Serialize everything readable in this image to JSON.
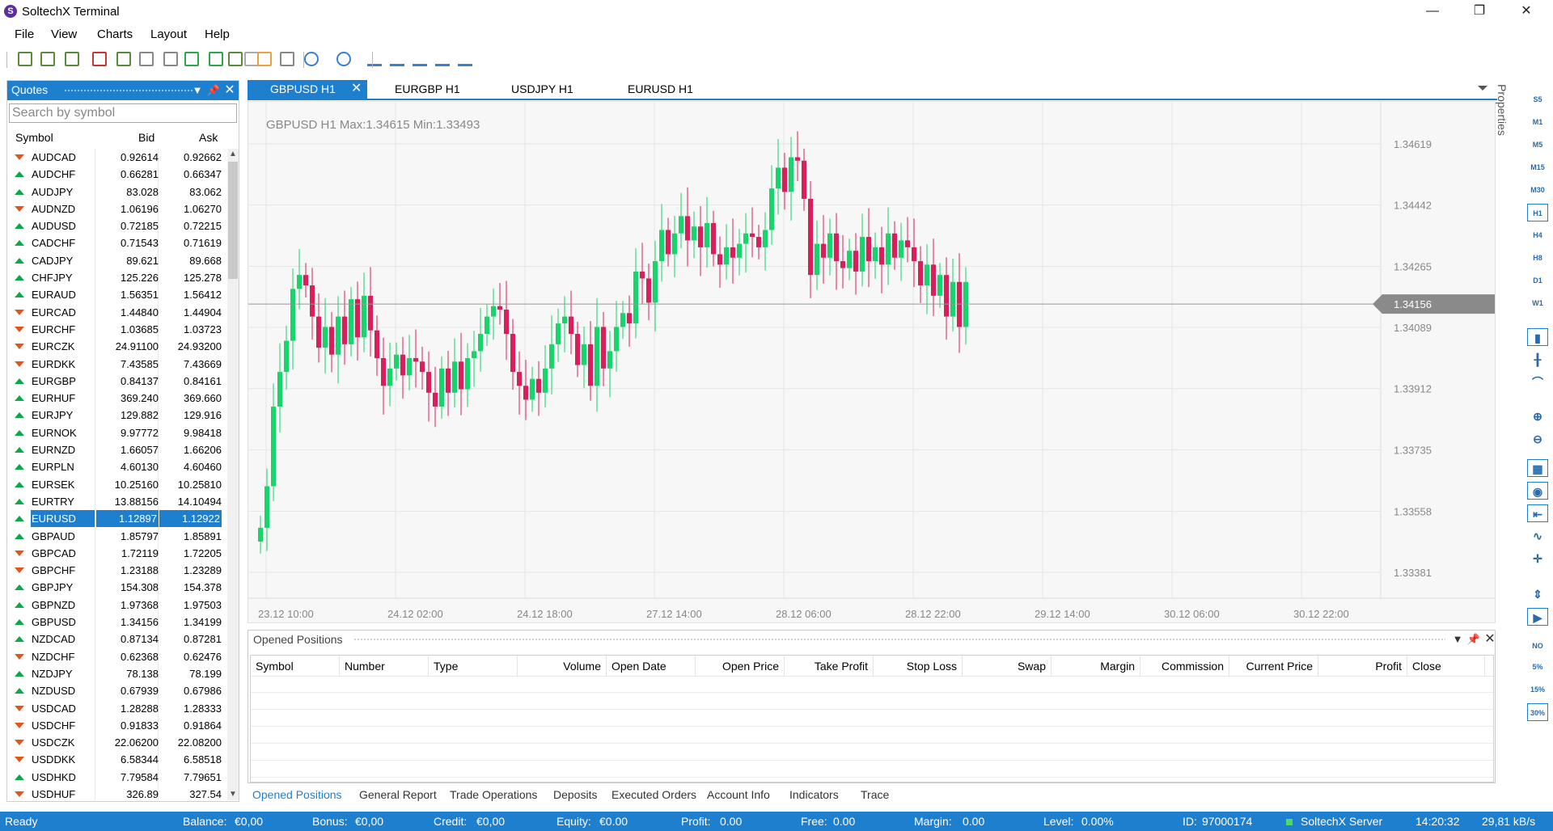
{
  "window": {
    "title": "SoltechX Terminal",
    "logo": "S",
    "minimize": "—",
    "maximize": "❐",
    "close": "✕"
  },
  "menu": [
    "File",
    "View",
    "Charts",
    "Layout",
    "Help"
  ],
  "toolbar_icons": [
    "new-chart-icon",
    "add-chart-icon",
    "crosshair-icon",
    "remove-icon",
    "open-icon",
    "save-icon",
    "print-icon",
    "compare-icon",
    "upload-icon",
    "template-icon",
    "user-icon",
    "lock-icon",
    "calculator-icon",
    "indicator-icon",
    "wave-icon",
    "vertical-line-icon",
    "horizontal-line-icon",
    "trendline-icon",
    "angle-icon",
    "fibonacci-icon"
  ],
  "quotes": {
    "title": "Quotes",
    "search_placeholder": "Search by symbol",
    "col_symbol": "Symbol",
    "col_bid": "Bid",
    "col_ask": "Ask",
    "rows": [
      {
        "symbol": "AUDCAD",
        "bid": "0.92614",
        "ask": "0.92662",
        "dir": "down"
      },
      {
        "symbol": "AUDCHF",
        "bid": "0.66281",
        "ask": "0.66347",
        "dir": "up"
      },
      {
        "symbol": "AUDJPY",
        "bid": "83.028",
        "ask": "83.062",
        "dir": "up"
      },
      {
        "symbol": "AUDNZD",
        "bid": "1.06196",
        "ask": "1.06270",
        "dir": "down"
      },
      {
        "symbol": "AUDUSD",
        "bid": "0.72185",
        "ask": "0.72215",
        "dir": "up"
      },
      {
        "symbol": "CADCHF",
        "bid": "0.71543",
        "ask": "0.71619",
        "dir": "up"
      },
      {
        "symbol": "CADJPY",
        "bid": "89.621",
        "ask": "89.668",
        "dir": "up"
      },
      {
        "symbol": "CHFJPY",
        "bid": "125.226",
        "ask": "125.278",
        "dir": "up"
      },
      {
        "symbol": "EURAUD",
        "bid": "1.56351",
        "ask": "1.56412",
        "dir": "up"
      },
      {
        "symbol": "EURCAD",
        "bid": "1.44840",
        "ask": "1.44904",
        "dir": "down"
      },
      {
        "symbol": "EURCHF",
        "bid": "1.03685",
        "ask": "1.03723",
        "dir": "down"
      },
      {
        "symbol": "EURCZK",
        "bid": "24.91100",
        "ask": "24.93200",
        "dir": "down"
      },
      {
        "symbol": "EURDKK",
        "bid": "7.43585",
        "ask": "7.43669",
        "dir": "down"
      },
      {
        "symbol": "EURGBP",
        "bid": "0.84137",
        "ask": "0.84161",
        "dir": "up"
      },
      {
        "symbol": "EURHUF",
        "bid": "369.240",
        "ask": "369.660",
        "dir": "up"
      },
      {
        "symbol": "EURJPY",
        "bid": "129.882",
        "ask": "129.916",
        "dir": "up"
      },
      {
        "symbol": "EURNOK",
        "bid": "9.97772",
        "ask": "9.98418",
        "dir": "up"
      },
      {
        "symbol": "EURNZD",
        "bid": "1.66057",
        "ask": "1.66206",
        "dir": "up"
      },
      {
        "symbol": "EURPLN",
        "bid": "4.60130",
        "ask": "4.60460",
        "dir": "up"
      },
      {
        "symbol": "EURSEK",
        "bid": "10.25160",
        "ask": "10.25810",
        "dir": "up"
      },
      {
        "symbol": "EURTRY",
        "bid": "13.88156",
        "ask": "14.10494",
        "dir": "up"
      },
      {
        "symbol": "EURUSD",
        "bid": "1.12897",
        "ask": "1.12922",
        "dir": "up",
        "selected": true
      },
      {
        "symbol": "GBPAUD",
        "bid": "1.85797",
        "ask": "1.85891",
        "dir": "up"
      },
      {
        "symbol": "GBPCAD",
        "bid": "1.72119",
        "ask": "1.72205",
        "dir": "down"
      },
      {
        "symbol": "GBPCHF",
        "bid": "1.23188",
        "ask": "1.23289",
        "dir": "down"
      },
      {
        "symbol": "GBPJPY",
        "bid": "154.308",
        "ask": "154.378",
        "dir": "up"
      },
      {
        "symbol": "GBPNZD",
        "bid": "1.97368",
        "ask": "1.97503",
        "dir": "up"
      },
      {
        "symbol": "GBPUSD",
        "bid": "1.34156",
        "ask": "1.34199",
        "dir": "up"
      },
      {
        "symbol": "NZDCAD",
        "bid": "0.87134",
        "ask": "0.87281",
        "dir": "up"
      },
      {
        "symbol": "NZDCHF",
        "bid": "0.62368",
        "ask": "0.62476",
        "dir": "down"
      },
      {
        "symbol": "NZDJPY",
        "bid": "78.138",
        "ask": "78.199",
        "dir": "up"
      },
      {
        "symbol": "NZDUSD",
        "bid": "0.67939",
        "ask": "0.67986",
        "dir": "up"
      },
      {
        "symbol": "USDCAD",
        "bid": "1.28288",
        "ask": "1.28333",
        "dir": "down"
      },
      {
        "symbol": "USDCHF",
        "bid": "0.91833",
        "ask": "0.91864",
        "dir": "down"
      },
      {
        "symbol": "USDCZK",
        "bid": "22.06200",
        "ask": "22.08200",
        "dir": "down"
      },
      {
        "symbol": "USDDKK",
        "bid": "6.58344",
        "ask": "6.58518",
        "dir": "down"
      },
      {
        "symbol": "USDHKD",
        "bid": "7.79584",
        "ask": "7.79651",
        "dir": "up"
      },
      {
        "symbol": "USDHUF",
        "bid": "326.89",
        "ask": "327.54",
        "dir": "down"
      }
    ]
  },
  "chart_tabs": [
    {
      "label": "GBPUSD H1",
      "active": true,
      "close": "✕"
    },
    {
      "label": "EURGBP H1"
    },
    {
      "label": "USDJPY H1"
    },
    {
      "label": "EURUSD H1"
    }
  ],
  "chart": {
    "info": "GBPUSD H1  Max:1.34615  Min:1.33493",
    "current_price": "1.34156",
    "colors": {
      "up": "#19d46a",
      "down": "#d91f5a",
      "grid": "#e6e6e6",
      "price_line": "#999999",
      "price_tag": "#8a8a8a"
    }
  },
  "chart_data": {
    "type": "candlestick",
    "symbol": "GBPUSD",
    "timeframe": "H1",
    "yticks": [
      "1.34619",
      "1.34442",
      "1.34265",
      "1.34089",
      "1.33912",
      "1.33735",
      "1.33558",
      "1.33381"
    ],
    "ytick_values": [
      1.34619,
      1.34442,
      1.34265,
      1.34089,
      1.33912,
      1.33735,
      1.33558,
      1.33381
    ],
    "ylim": [
      1.3333,
      1.3474
    ],
    "xticks": [
      "23.12 10:00",
      "24.12 02:00",
      "24.12 18:00",
      "27.12 14:00",
      "28.12 06:00",
      "28.12 22:00",
      "29.12 14:00",
      "30.12 06:00",
      "30.12 22:00"
    ],
    "last_price": 1.34156,
    "closes": [
      1.3351,
      1.3363,
      1.3386,
      1.3396,
      1.3405,
      1.342,
      1.3424,
      1.3421,
      1.3412,
      1.3403,
      1.3409,
      1.3401,
      1.3412,
      1.3404,
      1.3417,
      1.3406,
      1.3418,
      1.3408,
      1.34,
      1.3392,
      1.3397,
      1.3401,
      1.3395,
      1.34,
      1.3399,
      1.3396,
      1.339,
      1.3386,
      1.3397,
      1.339,
      1.3399,
      1.3391,
      1.34,
      1.3402,
      1.3407,
      1.3412,
      1.3415,
      1.3414,
      1.3407,
      1.3396,
      1.3392,
      1.3388,
      1.3394,
      1.339,
      1.3397,
      1.3404,
      1.341,
      1.3412,
      1.3407,
      1.3398,
      1.3404,
      1.3392,
      1.3409,
      1.3397,
      1.3402,
      1.3409,
      1.3413,
      1.341,
      1.3425,
      1.3423,
      1.3416,
      1.3428,
      1.3437,
      1.343,
      1.3436,
      1.3441,
      1.3434,
      1.3438,
      1.3432,
      1.3439,
      1.343,
      1.3427,
      1.3432,
      1.3429,
      1.3433,
      1.3436,
      1.3435,
      1.3432,
      1.3437,
      1.3449,
      1.3455,
      1.3448,
      1.3458,
      1.3457,
      1.3446,
      1.3424,
      1.3433,
      1.3429,
      1.3436,
      1.3428,
      1.3426,
      1.3431,
      1.3425,
      1.3435,
      1.3428,
      1.3432,
      1.3427,
      1.3436,
      1.3429,
      1.3434,
      1.3432,
      1.3428,
      1.3421,
      1.3427,
      1.3418,
      1.3424,
      1.3412,
      1.3422,
      1.3409,
      1.3422
    ]
  },
  "properties_label": "Properties",
  "right_tools": [
    "S5",
    "M1",
    "M5",
    "M15",
    "M30",
    "H1",
    "H4",
    "H8",
    "D1",
    "W1",
    "bar-chart-icon",
    "candle-icon",
    "line-chart-icon",
    "zoom-in-icon",
    "zoom-out-icon",
    "grid-icon",
    "eye-icon",
    "period-separator-icon",
    "indicator-icon",
    "crosshair-icon",
    "scale-icon",
    "autoscroll-icon",
    "NO",
    "5%",
    "15%",
    "30%"
  ],
  "positions": {
    "title": "Opened Positions",
    "columns": [
      "Symbol",
      "Number",
      "Type",
      "Volume",
      "Open Date",
      "Open Price",
      "Take Profit",
      "Stop Loss",
      "Swap",
      "Margin",
      "Commission",
      "Current Price",
      "Profit",
      "Close"
    ]
  },
  "bottom_tabs": [
    "Opened Positions",
    "General Report",
    "Trade Operations",
    "Deposits",
    "Executed Orders",
    "Account Info",
    "Indicators",
    "Trace"
  ],
  "status": {
    "ready": "Ready",
    "balance_label": "Balance:",
    "balance": "€0,00",
    "bonus_label": "Bonus:",
    "bonus": "€0,00",
    "credit_label": "Credit:",
    "credit": "€0,00",
    "equity_label": "Equity:",
    "equity": "€0.00",
    "profit_label": "Profit:",
    "profit": "0.00",
    "free_label": "Free:",
    "free": "0.00",
    "margin_label": "Margin:",
    "margin": "0.00",
    "level_label": "Level:",
    "level": "0.00%",
    "id_label": "ID:",
    "id": "97000174",
    "server": "SoltechX Server",
    "time": "14:20:32",
    "speed": "29,81 kB/s"
  }
}
